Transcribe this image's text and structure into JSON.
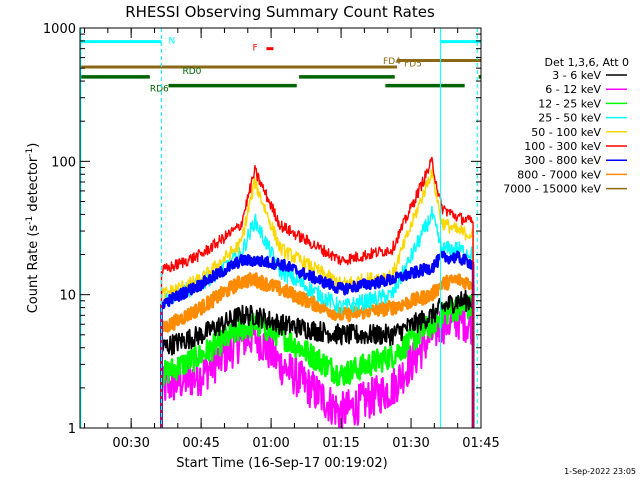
{
  "chart_data": {
    "type": "line",
    "title": "RHESSI Observing Summary Count Rates",
    "xlabel": "Start Time (16-Sep-17 00:19:02)",
    "ylabel_main": "Count Rate (s",
    "ylabel_sup1": "-1",
    "ylabel_mid": " detector",
    "ylabel_sup2": "-1",
    "ylabel_end": ")",
    "y_scale": "log",
    "ylim": [
      1,
      1000
    ],
    "xlim_minutes": [
      19.03,
      105.0
    ],
    "y_ticks": [
      {
        "value": 1,
        "label": "1"
      },
      {
        "value": 10,
        "label": "10"
      },
      {
        "value": 100,
        "label": "100"
      },
      {
        "value": 1000,
        "label": "1000"
      }
    ],
    "x_ticks": [
      {
        "value": 30,
        "label": "00:30"
      },
      {
        "value": 45,
        "label": "00:45"
      },
      {
        "value": 60,
        "label": "01:00"
      },
      {
        "value": 75,
        "label": "01:15"
      },
      {
        "value": 90,
        "label": "01:30"
      },
      {
        "value": 105,
        "label": "01:45"
      }
    ],
    "x_minor_step": 5,
    "timestamp": "1-Sep-2022 23:05",
    "legend_position": "right",
    "legend_header": "Det 1,3,6, Att 0",
    "series": [
      {
        "name": "3 - 6 keV",
        "color": "#000000"
      },
      {
        "name": "6 - 12 keV",
        "color": "#ff00ff"
      },
      {
        "name": "12 - 25 keV",
        "color": "#00ff00"
      },
      {
        "name": "25 - 50 keV",
        "color": "#00ffff"
      },
      {
        "name": "50 - 100 keV",
        "color": "#ffd700"
      },
      {
        "name": "100 - 300 keV",
        "color": "#ff0000"
      },
      {
        "name": "300 - 800 keV",
        "color": "#0000ff"
      },
      {
        "name": "800 - 7000 keV",
        "color": "#ff8c00"
      },
      {
        "name": "7000 - 15000 keV",
        "color": "#8b6914"
      }
    ],
    "data_window": {
      "start": 36.5,
      "end": 103.3
    },
    "key_points": {
      "x": [
        36.5,
        45,
        53.5,
        56.5,
        62,
        75,
        86,
        94.5,
        96.5,
        100,
        103.3
      ],
      "red": [
        15,
        20,
        33,
        85,
        33,
        18,
        22,
        100,
        45,
        38,
        35
      ],
      "blue": [
        8.5,
        12,
        18,
        18,
        17,
        11,
        13,
        16,
        19,
        19,
        17
      ],
      "orange": [
        5.5,
        8,
        12.5,
        13,
        11,
        7,
        8,
        10,
        12,
        13,
        12
      ],
      "black": [
        4,
        5,
        7,
        7,
        6,
        5,
        5,
        7,
        8,
        9,
        9
      ],
      "cyan": [
        9,
        12,
        20,
        36,
        15,
        8,
        10,
        40,
        22,
        22,
        20
      ],
      "yellow": [
        10,
        13,
        24,
        70,
        22,
        12,
        14,
        85,
        35,
        30,
        28
      ],
      "green": [
        2.5,
        3.5,
        5.5,
        6,
        5,
        2.5,
        3.5,
        6,
        7,
        8,
        8
      ],
      "magenta": [
        2,
        2.5,
        4.5,
        5,
        3,
        1.3,
        2,
        5,
        6,
        6.5,
        6
      ]
    },
    "state_bars": {
      "N": {
        "label": "N",
        "color": "#00ffff",
        "y": 790,
        "segments": [
          [
            19.03,
            36.5
          ],
          [
            96.3,
            105.0
          ]
        ]
      },
      "F": {
        "label": "F",
        "color": "#ff0000",
        "y": 700,
        "segments": [
          [
            59.0,
            60.5
          ]
        ]
      },
      "FD4": {
        "label": "FD4",
        "color": "#8b6914",
        "y": 510,
        "segments": [
          [
            19.03,
            87.0
          ]
        ]
      },
      "FD5": {
        "label": "FD5",
        "color": "#8b6914",
        "y": 570,
        "segments": [
          [
            87.0,
            105.0
          ]
        ]
      },
      "RD0": {
        "label": "RD0",
        "color": "#006400",
        "y": 430,
        "segments": [
          [
            19.03,
            34.0
          ],
          [
            66.0,
            86.5
          ],
          [
            104.5,
            105.0
          ]
        ]
      },
      "RD6": {
        "label": "RD6",
        "color": "#006400",
        "y": 370,
        "segments": [
          [
            38.0,
            65.5
          ],
          [
            84.5,
            101.5
          ]
        ]
      }
    },
    "vlines": [
      {
        "x": 19.2,
        "color": "#00ffff",
        "style": "solid"
      },
      {
        "x": 36.5,
        "color": "#00ffff",
        "style": "dashed"
      },
      {
        "x": 96.3,
        "color": "#00ffff",
        "style": "solid"
      },
      {
        "x": 104.2,
        "color": "#00ffff",
        "style": "dashed"
      }
    ]
  }
}
